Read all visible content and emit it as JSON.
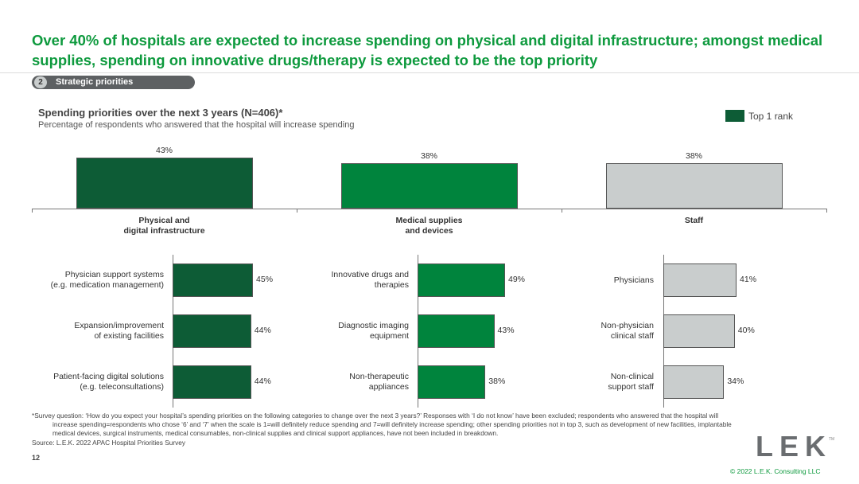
{
  "header": {
    "title": "Over 40% of hospitals are expected to increase spending on physical and digital infrastructure; amongst medical supplies, spending on innovative drugs/therapy is expected to be the top priority",
    "section_number": "2",
    "section_label": "Strategic priorities"
  },
  "chart_data": [
    {
      "type": "bar",
      "title": "Spending priorities over the next 3 years (N=406)*",
      "subtitle": "Percentage of respondents who answered that the hospital will increase spending",
      "categories": [
        "Physical and\ndigital infrastructure",
        "Medical supplies\nand devices",
        "Staff"
      ],
      "values": [
        43,
        38,
        38
      ],
      "value_labels": [
        "43%",
        "38%",
        "38%"
      ],
      "colors": [
        "#0d5c36",
        "#00843d",
        "#c9cdcd"
      ],
      "legend": {
        "label": "Top 1 rank",
        "color": "#0d5c36"
      }
    },
    {
      "type": "hbar",
      "categories": [
        "Physician support systems\n(e.g. medication management)",
        "Expansion/improvement\nof existing facilities",
        "Patient-facing digital solutions\n(e.g. teleconsultations)"
      ],
      "values": [
        45,
        44,
        44
      ],
      "value_labels": [
        "45%",
        "44%",
        "44%"
      ],
      "color": "#0d5c36"
    },
    {
      "type": "hbar",
      "categories": [
        "Innovative drugs and\ntherapies",
        "Diagnostic imaging\nequipment",
        "Non-therapeutic\nappliances"
      ],
      "values": [
        49,
        43,
        38
      ],
      "value_labels": [
        "49%",
        "43%",
        "38%"
      ],
      "color": "#00843d"
    },
    {
      "type": "hbar",
      "categories": [
        "Physicians",
        "Non-physician\nclinical staff",
        "Non-clinical\nsupport staff"
      ],
      "values": [
        41,
        40,
        34
      ],
      "value_labels": [
        "41%",
        "40%",
        "34%"
      ],
      "color": "#c9cdcd"
    }
  ],
  "footer": {
    "note": "*Survey question: ‘How do you expect your hospital’s spending priorities on the following categories to change over the next 3 years?’ Responses with ‘I do not know’ have been excluded; respondents who answered that the hospital will increase spending=respondents who chose ‘6’ and ‘7’ when the scale is 1=will definitely reduce spending and 7=will definitely increase spending; other spending priorities not in top 3, such as development of new facilities, implantable medical devices, surgical instruments, medical consumables, non-clinical supplies and clinical support appliances, have not been included in breakdown.",
    "source": "Source: L.E.K. 2022 APAC Hospital Priorities Survey",
    "page": "12",
    "logo": "LEK",
    "trademark": "TM",
    "copyright": "© 2022 L.E.K. Consulting LLC"
  }
}
